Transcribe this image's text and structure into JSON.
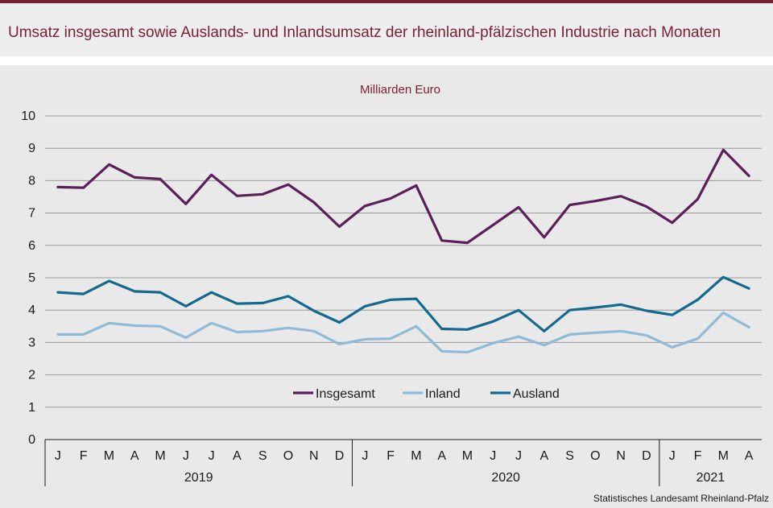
{
  "header": {
    "title": "Umsatz insgesamt sowie Auslands- und Inlandsumsatz der rheinland-pfälzischen Industrie nach Monaten"
  },
  "source": "Statistisches Landesamt  Rheinland-Pfalz",
  "colors": {
    "accent": "#7b1f34",
    "insgesamt": "#5b1f5a",
    "inland": "#8fbbd6",
    "ausland": "#14698e"
  },
  "chart_data": {
    "type": "line",
    "title": "Umsatz insgesamt sowie Auslands- und Inlandsumsatz der rheinland-pfälzischen Industrie nach Monaten",
    "unit_label": "Milliarden Euro",
    "ylim": [
      0,
      10
    ],
    "yticks": [
      0,
      1,
      2,
      3,
      4,
      5,
      6,
      7,
      8,
      9,
      10
    ],
    "grid": true,
    "legend_position": "bottom-center",
    "months": [
      "J",
      "F",
      "M",
      "A",
      "M",
      "J",
      "J",
      "A",
      "S",
      "O",
      "N",
      "D",
      "J",
      "F",
      "M",
      "A",
      "M",
      "J",
      "J",
      "A",
      "S",
      "O",
      "N",
      "D",
      "J",
      "F",
      "M",
      "A"
    ],
    "year_groups": [
      {
        "label": "2019",
        "count": 12
      },
      {
        "label": "2020",
        "count": 12
      },
      {
        "label": "2021",
        "count": 4
      }
    ],
    "series": [
      {
        "name": "Insgesamt",
        "color": "#5b1f5a",
        "values": [
          7.8,
          7.78,
          8.5,
          8.1,
          8.05,
          7.28,
          8.18,
          7.53,
          7.58,
          7.88,
          7.33,
          6.58,
          7.22,
          7.45,
          7.85,
          6.15,
          6.08,
          6.63,
          7.18,
          6.25,
          7.25,
          7.37,
          7.52,
          7.2,
          6.7,
          7.43,
          8.95,
          8.15
        ]
      },
      {
        "name": "Inland",
        "color": "#8fbbd6",
        "values": [
          3.25,
          3.25,
          3.6,
          3.52,
          3.5,
          3.15,
          3.6,
          3.32,
          3.35,
          3.45,
          3.35,
          2.95,
          3.1,
          3.12,
          3.5,
          2.73,
          2.7,
          2.98,
          3.18,
          2.92,
          3.25,
          3.3,
          3.35,
          3.22,
          2.85,
          3.12,
          3.92,
          3.47
        ]
      },
      {
        "name": "Ausland",
        "color": "#14698e",
        "values": [
          4.55,
          4.5,
          4.9,
          4.58,
          4.55,
          4.12,
          4.55,
          4.2,
          4.22,
          4.43,
          3.98,
          3.62,
          4.12,
          4.32,
          4.35,
          3.42,
          3.4,
          3.65,
          4.0,
          3.35,
          4.0,
          4.08,
          4.17,
          3.98,
          3.85,
          4.32,
          5.02,
          4.67
        ]
      }
    ]
  }
}
